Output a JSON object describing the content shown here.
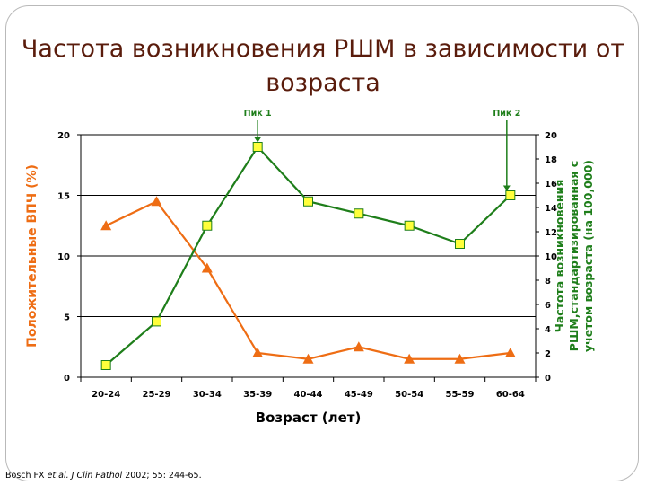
{
  "title": "Частота возникновения РШМ в зависимости от возраста",
  "citation": {
    "authors": "Bosch FX",
    "etal": "et al.",
    "journal": "J Clin Pathol",
    "details": "2002; 55: 244-65."
  },
  "chart_data": {
    "type": "line",
    "categories": [
      "20-24",
      "25-29",
      "30-34",
      "35-39",
      "40-44",
      "45-49",
      "50-54",
      "55-59",
      "60-64"
    ],
    "xlabel": "Возраст (лет)",
    "ylabel_left": "Положительные ВПЧ (%)",
    "ylabel_right": "Частота возникновения РШМ,стандартизированная с учетом возраста (на 100,000)",
    "ylim_left": [
      0,
      20
    ],
    "yticks_left": [
      0,
      5,
      10,
      15,
      20
    ],
    "ylim_right": [
      0,
      20
    ],
    "yticks_right": [
      0,
      2,
      4,
      6,
      8,
      10,
      12,
      14,
      16,
      18,
      20
    ],
    "grid": "horizontal",
    "series": [
      {
        "axis": "left",
        "marker": "triangle",
        "color": "#ee6d14",
        "values": [
          12.5,
          14.5,
          9,
          2,
          1.5,
          2.5,
          1.5,
          1.5,
          2
        ]
      },
      {
        "axis": "right",
        "marker": "square",
        "color": "#1e7e1a",
        "marker_fill": "#ffff3b",
        "values": [
          1,
          4.6,
          12.5,
          19,
          14.5,
          13.5,
          12.5,
          11,
          15
        ]
      }
    ],
    "annotations": [
      {
        "text": "Пик 1",
        "category": "35-39"
      },
      {
        "text": "Пик 2",
        "category": "60-64"
      }
    ]
  }
}
